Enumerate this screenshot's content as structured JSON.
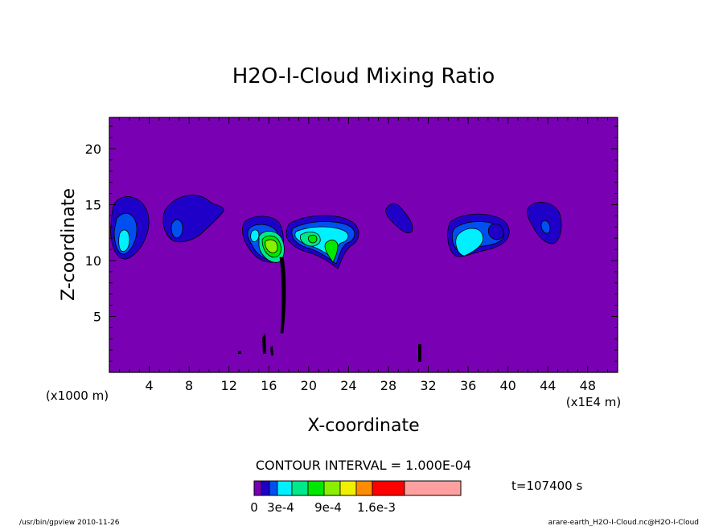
{
  "chart_data": {
    "type": "heatmap",
    "title": "H2O-I-Cloud Mixing Ratio",
    "xlabel": "X-coordinate",
    "ylabel": "Z-coordinate",
    "x_scale_note": "(x1E4 m)",
    "y_scale_note": "(x1000 m)",
    "xlim": [
      0,
      51
    ],
    "ylim": [
      0,
      22.8
    ],
    "x_ticks": [
      4,
      8,
      12,
      16,
      20,
      24,
      28,
      32,
      36,
      40,
      44,
      48
    ],
    "y_ticks": [
      5,
      10,
      15,
      20
    ],
    "background_color": "#7a00b4",
    "contour_interval_text": "CONTOUR INTERVAL = 1.000E-04",
    "time_text": "t=107400 s",
    "colorbar": {
      "colors": [
        "#7a00b4",
        "#1f00c8",
        "#0050f0",
        "#00f0ff",
        "#00e88c",
        "#00e800",
        "#88f000",
        "#f0f000",
        "#ff8c00",
        "#ff0000",
        "#ffa0a0"
      ],
      "tick_labels": [
        "0",
        "3e-4",
        "9e-4",
        "1.6e-3"
      ]
    },
    "cloud_cells": [
      {
        "x": 1.5,
        "z": 13.0,
        "max_value": 0.0003
      },
      {
        "x": 8.0,
        "z": 14.0,
        "max_value": 0.0002
      },
      {
        "x": 15.5,
        "z": 12.2,
        "max_value": 0.0004
      },
      {
        "x": 16.8,
        "z": 12.0,
        "max_value": 0.0007
      },
      {
        "x": 21.0,
        "z": 12.2,
        "max_value": 0.0006
      },
      {
        "x": 29.0,
        "z": 14.0,
        "max_value": 0.0001
      },
      {
        "x": 36.0,
        "z": 12.2,
        "max_value": 0.0004
      },
      {
        "x": 44.0,
        "z": 13.5,
        "max_value": 0.0002
      }
    ],
    "footer_left": "/usr/bin/gpview  2010-11-26",
    "footer_right": "arare-earth_H2O-I-Cloud.nc@H2O-I-Cloud"
  }
}
